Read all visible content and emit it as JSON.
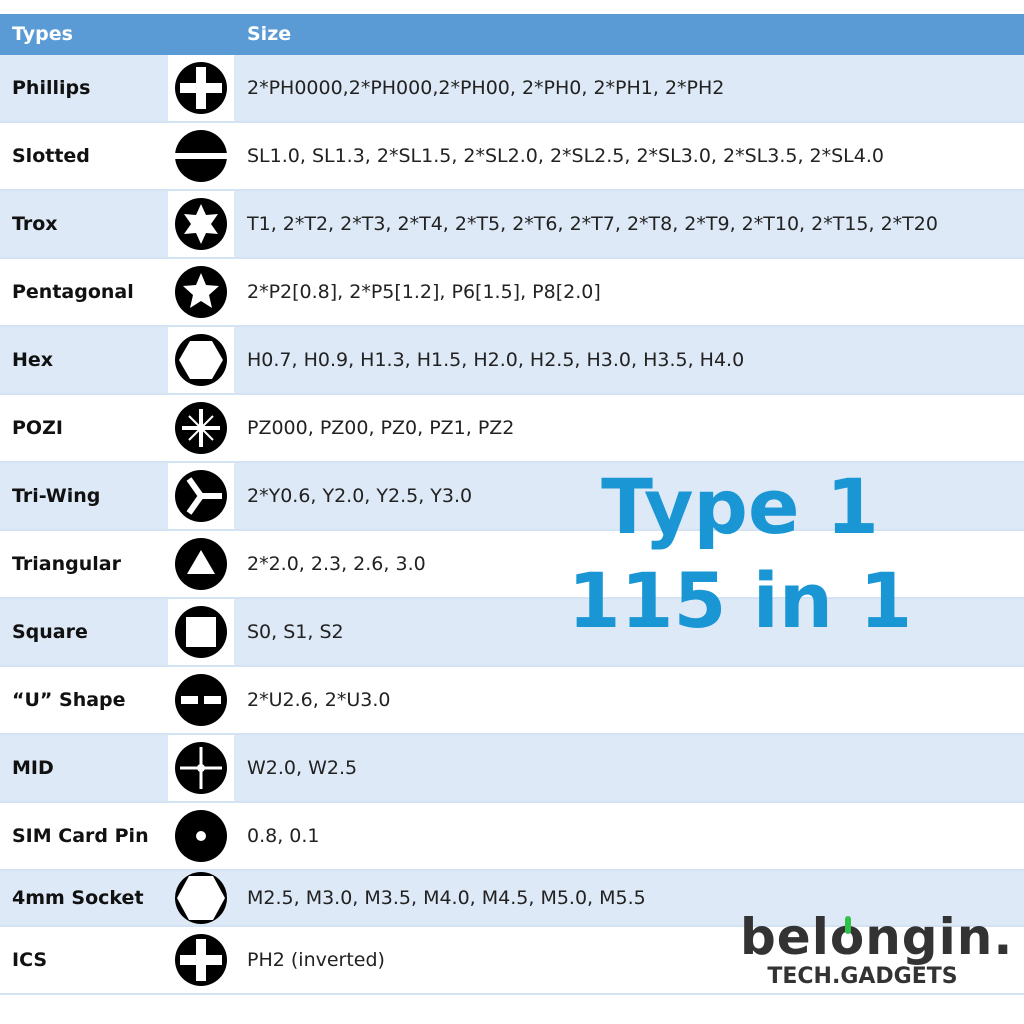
{
  "header": {
    "types": "Types",
    "size": "Size",
    "color": "#5b9bd5"
  },
  "rows": [
    {
      "type": "Phillips",
      "icon": "phillips-icon",
      "size": "2*PH0000,2*PH000,2*PH00, 2*PH0, 2*PH1, 2*PH2"
    },
    {
      "type": "Slotted",
      "icon": "slotted-icon",
      "size": "SL1.0, SL1.3, 2*SL1.5, 2*SL2.0, 2*SL2.5, 2*SL3.0, 2*SL3.5, 2*SL4.0"
    },
    {
      "type": "Trox",
      "icon": "torx-icon",
      "size": "T1, 2*T2, 2*T3, 2*T4, 2*T5, 2*T6, 2*T7, 2*T8, 2*T9, 2*T10, 2*T15, 2*T20"
    },
    {
      "type": "Pentagonal",
      "icon": "pentalobe-icon",
      "size": "2*P2[0.8], 2*P5[1.2], P6[1.5], P8[2.0]"
    },
    {
      "type": "Hex",
      "icon": "hex-icon",
      "size": "H0.7, H0.9, H1.3, H1.5, H2.0, H2.5, H3.0, H3.5, H4.0"
    },
    {
      "type": "POZI",
      "icon": "pozi-icon",
      "size": "PZ000, PZ00, PZ0, PZ1, PZ2"
    },
    {
      "type": "Tri-Wing",
      "icon": "tri-wing-icon",
      "size": "2*Y0.6, Y2.0, Y2.5, Y3.0"
    },
    {
      "type": "Triangular",
      "icon": "triangle-icon",
      "size": "2*2.0, 2.3, 2.6, 3.0"
    },
    {
      "type": "Square",
      "icon": "square-icon",
      "size": "S0, S1, S2"
    },
    {
      "type": "“U” Shape",
      "icon": "u-shape-icon",
      "size": "2*U2.6, 2*U3.0"
    },
    {
      "type": "MID",
      "icon": "mid-icon",
      "size": "W2.0, W2.5"
    },
    {
      "type": "SIM Card Pin",
      "icon": "sim-pin-icon",
      "size": "0.8, 0.1"
    },
    {
      "type": "4mm Socket",
      "icon": "socket-icon",
      "size": "M2.5, M3.0, M3.5, M4.0, M4.5, M5.0, M5.5"
    },
    {
      "type": "ICS",
      "icon": "ics-icon",
      "size": "PH2 (inverted)"
    }
  ],
  "overlay": {
    "line1": "Type 1",
    "line2": "115 in 1",
    "color": "#1a96d4"
  },
  "logo": {
    "brand": "belongin.",
    "tagline": "TECH.GADGETS",
    "accent": "#2ec24a"
  }
}
